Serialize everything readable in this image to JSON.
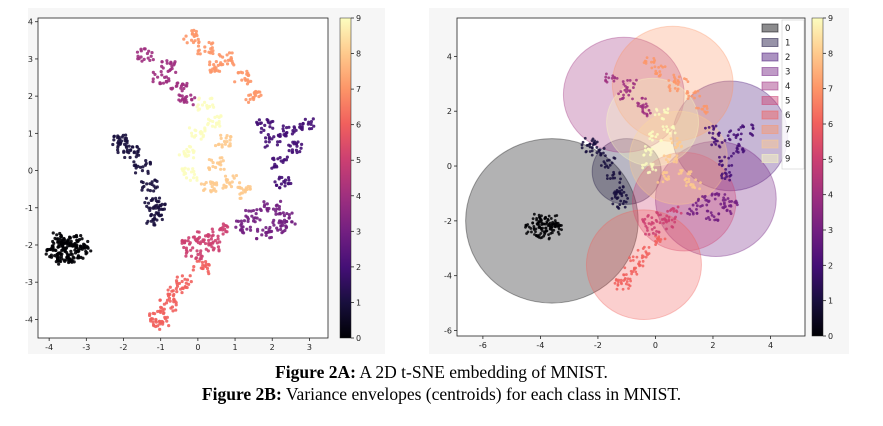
{
  "captions": [
    {
      "label": "Figure 2A:",
      "text": "A 2D t-SNE embedding of MNIST."
    },
    {
      "label": "Figure 2B:",
      "text": "Variance envelopes (centroids) for each class in MNIST."
    }
  ],
  "colors": {
    "class": [
      "#000004",
      "#180f3d",
      "#440f76",
      "#721f81",
      "#9e2f7f",
      "#cd4071",
      "#f1605d",
      "#fd9668",
      "#feca8d",
      "#fcfdbf"
    ]
  },
  "chart_data": [
    {
      "type": "scatter",
      "title": "",
      "xlabel": "",
      "ylabel": "",
      "xlim": [
        -4.3,
        3.5
      ],
      "ylim": [
        -4.5,
        4.1
      ],
      "xticks": [
        -4,
        -3,
        -2,
        -1,
        0,
        1,
        2,
        3
      ],
      "yticks": [
        -4,
        -3,
        -2,
        -1,
        0,
        1,
        2,
        3,
        4
      ],
      "grid": false,
      "colorbar": {
        "min": 0,
        "max": 9,
        "ticks": [
          0,
          1,
          2,
          3,
          4,
          5,
          6,
          7,
          8,
          9
        ],
        "colormap": "magma"
      },
      "series": [
        {
          "class": 0,
          "points": [
            [
              -3.5,
              -2.1
            ],
            [
              -3.8,
              -2.0
            ],
            [
              -3.2,
              -2.2
            ],
            [
              -3.6,
              -2.3
            ],
            [
              -3.3,
              -1.9
            ],
            [
              -3.9,
              -2.2
            ],
            [
              -3.1,
              -2.05
            ],
            [
              -3.45,
              -1.95
            ],
            [
              -3.7,
              -1.85
            ],
            [
              -3.55,
              -2.35
            ]
          ]
        },
        {
          "class": 1,
          "points": [
            [
              -2.1,
              0.8
            ],
            [
              -1.8,
              0.5
            ],
            [
              -1.5,
              0.1
            ],
            [
              -1.3,
              -0.4
            ],
            [
              -1.2,
              -0.9
            ],
            [
              -1.15,
              -1.3
            ],
            [
              -1.1,
              -1.05
            ],
            [
              -2.0,
              0.65
            ]
          ]
        },
        {
          "class": 2,
          "points": [
            [
              2.0,
              0.8
            ],
            [
              2.5,
              1.1
            ],
            [
              2.2,
              0.2
            ],
            [
              2.9,
              1.25
            ],
            [
              1.8,
              1.2
            ],
            [
              2.3,
              -0.3
            ],
            [
              2.6,
              0.6
            ]
          ]
        },
        {
          "class": 3,
          "points": [
            [
              1.2,
              -1.5
            ],
            [
              1.8,
              -1.7
            ],
            [
              2.2,
              -1.5
            ],
            [
              1.5,
              -1.2
            ],
            [
              2.0,
              -1.0
            ],
            [
              2.4,
              -1.3
            ]
          ]
        },
        {
          "class": 4,
          "points": [
            [
              -0.8,
              2.8
            ],
            [
              -1.4,
              3.1
            ],
            [
              -0.5,
              2.2
            ],
            [
              -1.0,
              2.5
            ],
            [
              -0.3,
              1.9
            ]
          ]
        },
        {
          "class": 5,
          "points": [
            [
              0.2,
              -1.8
            ],
            [
              -0.2,
              -1.9
            ],
            [
              0.6,
              -1.6
            ],
            [
              -0.1,
              -2.2
            ],
            [
              0.4,
              -2.0
            ]
          ]
        },
        {
          "class": 6,
          "points": [
            [
              -1.0,
              -4.1
            ],
            [
              -0.8,
              -3.6
            ],
            [
              -0.4,
              -3.0
            ],
            [
              -1.1,
              -3.9
            ],
            [
              0.1,
              -2.6
            ],
            [
              -0.6,
              -3.3
            ]
          ]
        },
        {
          "class": 7,
          "points": [
            [
              0.2,
              3.3
            ],
            [
              0.8,
              3.0
            ],
            [
              1.2,
              2.5
            ],
            [
              1.5,
              2.0
            ],
            [
              0.5,
              2.8
            ],
            [
              -0.2,
              3.6
            ]
          ]
        },
        {
          "class": 8,
          "points": [
            [
              0.5,
              0.2
            ],
            [
              0.9,
              -0.3
            ],
            [
              1.2,
              -0.6
            ],
            [
              0.7,
              0.8
            ],
            [
              0.3,
              -0.4
            ]
          ]
        },
        {
          "class": 9,
          "points": [
            [
              0.0,
              1.0
            ],
            [
              -0.3,
              0.5
            ],
            [
              0.2,
              1.8
            ],
            [
              -0.2,
              -0.1
            ],
            [
              0.4,
              1.3
            ]
          ]
        }
      ]
    },
    {
      "type": "scatter",
      "title": "",
      "xlabel": "",
      "ylabel": "",
      "xlim": [
        -6.9,
        5.2
      ],
      "ylim": [
        -6.2,
        5.4
      ],
      "xticks": [
        -6,
        -4,
        -2,
        0,
        2,
        4
      ],
      "yticks": [
        -6,
        -4,
        -2,
        0,
        2,
        4
      ],
      "grid": false,
      "legend_position": "top-right",
      "legend": [
        "0",
        "1",
        "2",
        "3",
        "4",
        "5",
        "6",
        "7",
        "8",
        "9"
      ],
      "colorbar": {
        "min": 0,
        "max": 9,
        "ticks": [
          0,
          1,
          2,
          3,
          4,
          5,
          6,
          7,
          8,
          9
        ],
        "colormap": "magma"
      },
      "envelopes": [
        {
          "class": 0,
          "cx": -3.6,
          "cy": -2.0,
          "r": 3.0
        },
        {
          "class": 1,
          "cx": -1.0,
          "cy": -0.2,
          "r": 1.2
        },
        {
          "class": 2,
          "cx": 2.6,
          "cy": 1.1,
          "r": 2.0
        },
        {
          "class": 3,
          "cx": 2.1,
          "cy": -1.2,
          "r": 2.1
        },
        {
          "class": 4,
          "cx": -1.1,
          "cy": 2.6,
          "r": 2.1
        },
        {
          "class": 5,
          "cx": 1.0,
          "cy": -1.3,
          "r": 1.8
        },
        {
          "class": 6,
          "cx": -0.4,
          "cy": -3.6,
          "r": 2.0
        },
        {
          "class": 7,
          "cx": 0.6,
          "cy": 3.0,
          "r": 2.1
        },
        {
          "class": 8,
          "cx": 0.8,
          "cy": 0.3,
          "r": 1.7
        },
        {
          "class": 9,
          "cx": -0.1,
          "cy": 1.6,
          "r": 1.6
        }
      ]
    }
  ]
}
